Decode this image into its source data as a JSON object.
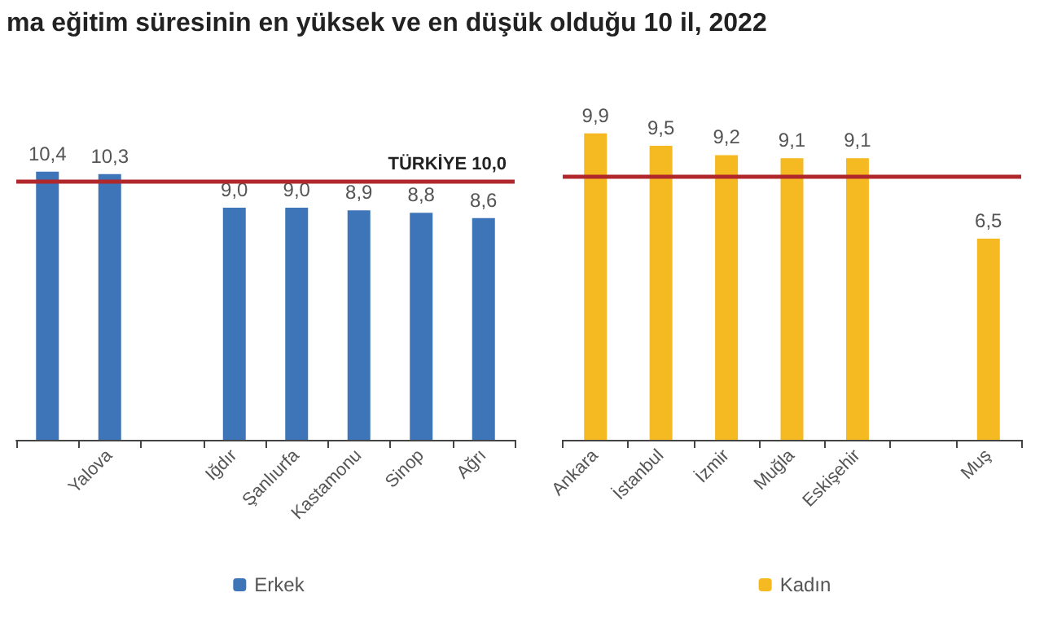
{
  "chart_data": [
    {
      "type": "bar",
      "title": "ma eğitim süresinin en yüksek ve en düşük olduğu 10 il, 2022",
      "categories": [
        null,
        "Yalova",
        null,
        "Iğdır",
        "Şanlıurfa",
        "Kastamonu",
        "Sinop",
        "Ağrı"
      ],
      "series": [
        {
          "name": "Erkek",
          "color": "#3e75b8",
          "values": [
            10.4,
            10.3,
            null,
            9.0,
            9.0,
            8.9,
            8.8,
            8.6
          ],
          "value_labels": [
            "10,4",
            "10,3",
            null,
            "9,0",
            "9,0",
            "8,9",
            "8,8",
            "8,6"
          ]
        }
      ],
      "ref_lines": [
        {
          "axis": "y",
          "value": 10.0,
          "label": "TÜRKİYE 10,0",
          "color": "#b0282c"
        }
      ],
      "legend": "bottom"
    },
    {
      "type": "bar",
      "categories": [
        "Ankara",
        "İstanbul",
        "İzmir",
        "Muğla",
        "Eskişehir",
        null,
        "Muş"
      ],
      "series": [
        {
          "name": "Kadın",
          "color": "#f5b921",
          "values": [
            9.9,
            9.5,
            9.2,
            9.1,
            9.1,
            null,
            6.5
          ],
          "value_labels": [
            "9,9",
            "9,5",
            "9,2",
            "9,1",
            "9,1",
            null,
            "6,5"
          ]
        }
      ],
      "ref_lines": [
        {
          "axis": "y",
          "value": 8.5,
          "color": "#b0282c"
        }
      ],
      "legend": "bottom"
    }
  ]
}
